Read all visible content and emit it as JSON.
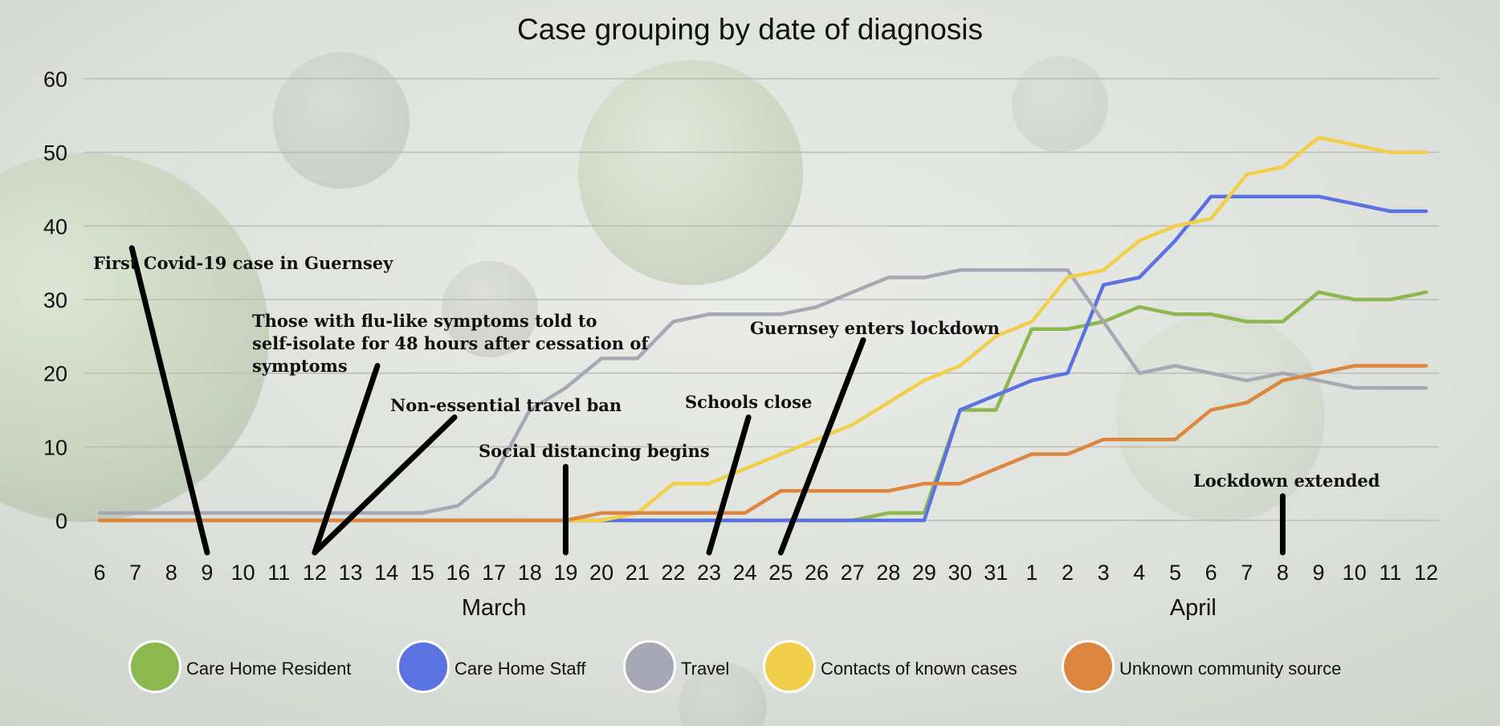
{
  "chart_data": {
    "type": "line",
    "title": "Case grouping by date of diagnosis",
    "ylim": [
      0,
      60
    ],
    "yticks": [
      0,
      10,
      20,
      30,
      40,
      50,
      60
    ],
    "grid": true,
    "legend_position": "bottom",
    "x": [
      "6",
      "7",
      "8",
      "9",
      "10",
      "11",
      "12",
      "13",
      "14",
      "15",
      "16",
      "17",
      "18",
      "19",
      "20",
      "21",
      "22",
      "23",
      "24",
      "25",
      "26",
      "27",
      "28",
      "29",
      "30",
      "31",
      "1",
      "2",
      "3",
      "4",
      "5",
      "6",
      "7",
      "8",
      "9",
      "10",
      "11",
      "12"
    ],
    "months": [
      {
        "label": "March",
        "center_index": 11
      },
      {
        "label": "April",
        "center_index": 30.5
      }
    ],
    "series": [
      {
        "name": "Care Home Resident",
        "color": "#8cb84f",
        "values": [
          0,
          0,
          0,
          0,
          0,
          0,
          0,
          0,
          0,
          0,
          0,
          0,
          0,
          0,
          0,
          0,
          0,
          0,
          0,
          0,
          0,
          0,
          1,
          1,
          15,
          15,
          26,
          26,
          27,
          29,
          28,
          28,
          27,
          27,
          31,
          30,
          30,
          31
        ]
      },
      {
        "name": "Care Home Staff",
        "color": "#5b73e0",
        "values": [
          0,
          0,
          0,
          0,
          0,
          0,
          0,
          0,
          0,
          0,
          0,
          0,
          0,
          0,
          0,
          0,
          0,
          0,
          0,
          0,
          0,
          0,
          0,
          0,
          15,
          17,
          19,
          20,
          32,
          33,
          38,
          44,
          44,
          44,
          44,
          43,
          42,
          42
        ]
      },
      {
        "name": "Travel",
        "color": "#a7a7b5",
        "values": [
          1,
          1,
          1,
          1,
          1,
          1,
          1,
          1,
          1,
          1,
          2,
          6,
          15,
          18,
          22,
          22,
          27,
          28,
          28,
          28,
          29,
          31,
          33,
          33,
          34,
          34,
          34,
          34,
          27,
          20,
          21,
          20,
          19,
          20,
          19,
          18,
          18,
          18
        ]
      },
      {
        "name": "Contacts of known cases",
        "color": "#f2cf4a",
        "values": [
          0,
          0,
          0,
          0,
          0,
          0,
          0,
          0,
          0,
          0,
          0,
          0,
          0,
          0,
          0,
          1,
          5,
          5,
          7,
          9,
          11,
          13,
          16,
          19,
          21,
          25,
          27,
          33,
          34,
          38,
          40,
          41,
          47,
          48,
          52,
          51,
          50,
          50
        ]
      },
      {
        "name": "Unknown community source",
        "color": "#dd8640",
        "values": [
          0,
          0,
          0,
          0,
          0,
          0,
          0,
          0,
          0,
          0,
          0,
          0,
          0,
          0,
          1,
          1,
          1,
          1,
          1,
          4,
          4,
          4,
          4,
          5,
          5,
          7,
          9,
          9,
          11,
          11,
          11,
          15,
          16,
          19,
          20,
          21,
          21,
          21
        ]
      }
    ],
    "annotations": [
      {
        "lines": [
          "First Covid-19 case in Guernsey"
        ],
        "index": 3,
        "tx": 0.9,
        "ty": 37
      },
      {
        "lines": [
          "Those with flu-like symptoms told to",
          "self-isolate for 48 hours after cessation of",
          "symptoms"
        ],
        "index": 6,
        "tx": 7.75,
        "ty": 21
      },
      {
        "lines": [
          "Non-essential travel ban"
        ],
        "index": 6,
        "tx": 9.9,
        "ty": 14
      },
      {
        "lines": [
          "Social distancing begins"
        ],
        "index": 13,
        "tx": 13,
        "ty": 7.3
      },
      {
        "lines": [
          "Schools close"
        ],
        "index": 17,
        "tx": 18.1,
        "ty": 14
      },
      {
        "lines": [
          "Guernsey enters lockdown"
        ],
        "index": 19,
        "tx": 21.3,
        "ty": 24.5
      },
      {
        "lines": [
          "Lockdown extended"
        ],
        "index": 33,
        "tx": 33,
        "ty": 3.3
      }
    ]
  },
  "legend": [
    {
      "label": "Care Home Resident",
      "color": "#8cb84f"
    },
    {
      "label": "Care Home Staff",
      "color": "#5b73e0"
    },
    {
      "label": "Travel",
      "color": "#a7a7b5"
    },
    {
      "label": "Contacts of known cases",
      "color": "#f2cf4a"
    },
    {
      "label": "Unknown community source",
      "color": "#dd8640"
    }
  ]
}
